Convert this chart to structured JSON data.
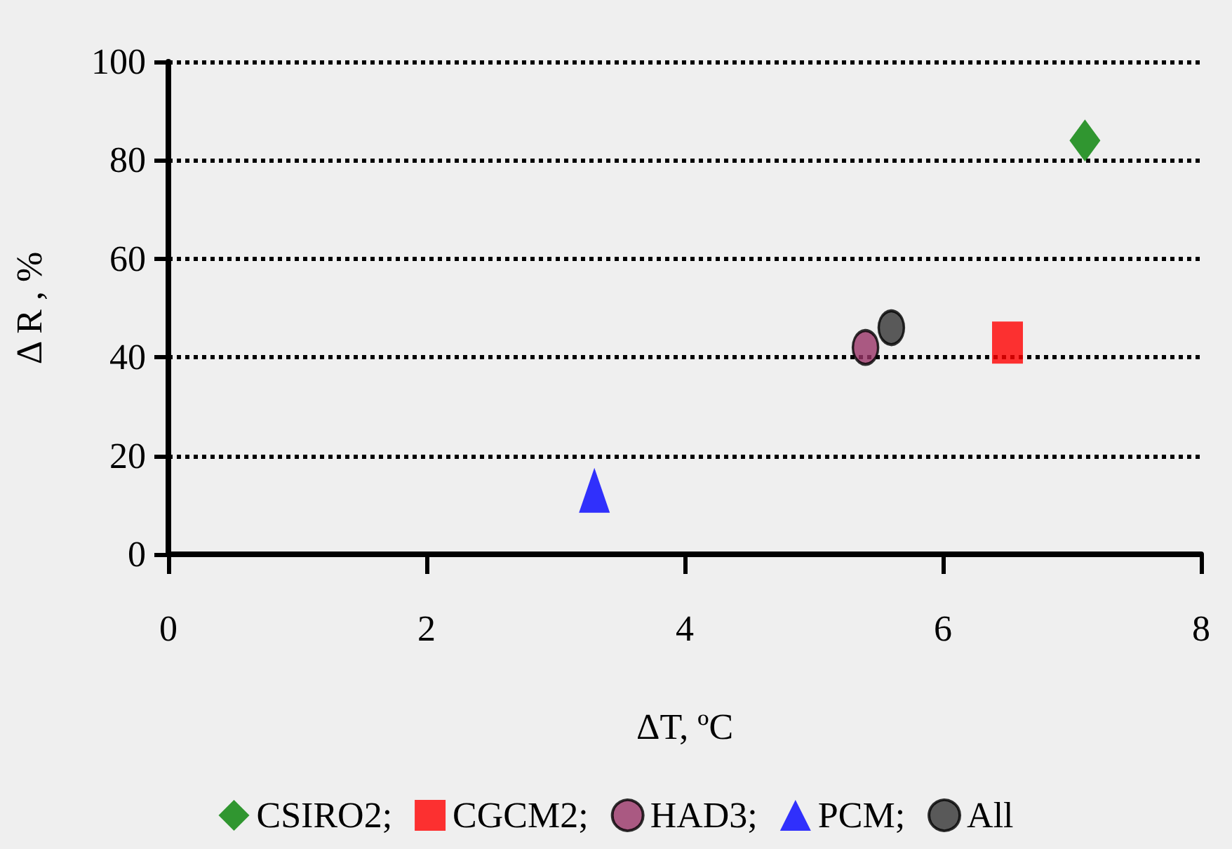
{
  "chart_data": {
    "type": "scatter",
    "xlabel": "ΔT, ºC",
    "ylabel": "Δ R , %",
    "xlim": [
      0,
      8
    ],
    "xticks": [
      0,
      2,
      4,
      6,
      8
    ],
    "ylim": [
      0,
      100
    ],
    "yticks": [
      0,
      20,
      40,
      60,
      80,
      100
    ],
    "grid": "y",
    "line_style": "dotted",
    "legend": "bottom",
    "series": [
      {
        "name": "CSIRO2;",
        "color": "#008000",
        "marker": "diamond",
        "x": [
          7.1
        ],
        "values": [
          84
        ]
      },
      {
        "name": "CGCM2;",
        "color": "#ff0000",
        "marker": "square",
        "x": [
          6.5
        ],
        "values": [
          43
        ]
      },
      {
        "name": "HAD3;",
        "color": "#993366",
        "marker": "circle",
        "x": [
          5.4
        ],
        "values": [
          42
        ]
      },
      {
        "name": "PCM;",
        "color": "#0000ff",
        "marker": "triangle",
        "x": [
          3.3
        ],
        "values": [
          13
        ]
      },
      {
        "name": "All",
        "color": "#333333",
        "marker": "circle",
        "x": [
          5.6
        ],
        "values": [
          46
        ]
      }
    ]
  }
}
